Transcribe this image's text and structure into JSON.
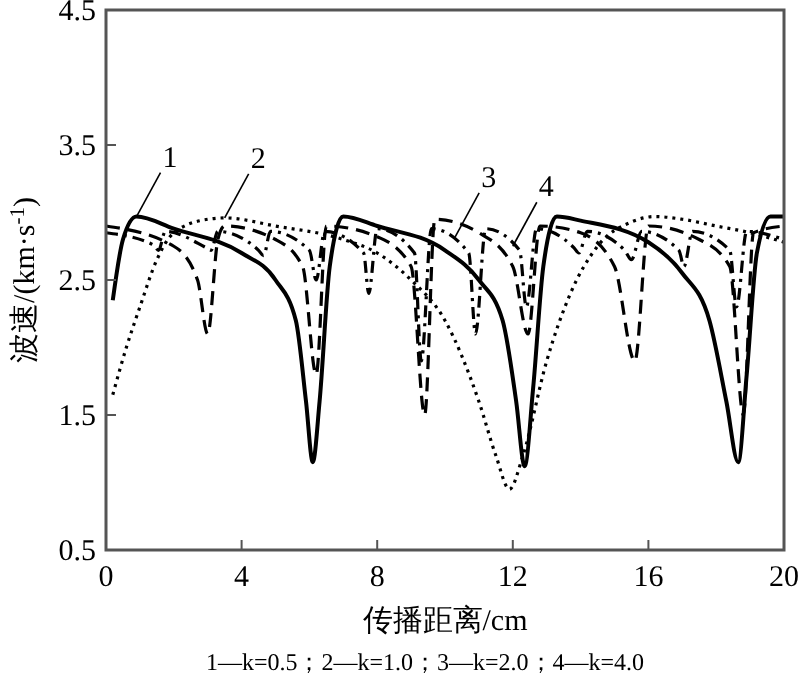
{
  "chart_data": {
    "type": "line",
    "xlabel": "传播距离/cm",
    "ylabel": "波速/(km·s$^{-1}$)",
    "xlim": [
      0,
      20
    ],
    "ylim": [
      0.5,
      4.5
    ],
    "xticks": [
      0,
      4,
      8,
      12,
      16,
      20
    ],
    "yticks": [
      0.5,
      1.5,
      2.5,
      3.5,
      4.5
    ],
    "grid": false,
    "marker": "none",
    "series": [
      {
        "color": "#000000",
        "line_style": "solid",
        "x": [
          0.2,
          0.5,
          0.9,
          2,
          4,
          5,
          5.6,
          5.9,
          6.1,
          6.3,
          6.6,
          7,
          8,
          10,
          11,
          11.7,
          12.1,
          12.35,
          12.6,
          12.9,
          13.3,
          14,
          16,
          17,
          17.8,
          18.3,
          18.65,
          18.9,
          19.2,
          19.6,
          20
        ],
        "values": [
          2.35,
          2.8,
          2.97,
          2.88,
          2.7,
          2.5,
          2.2,
          1.6,
          1.15,
          1.6,
          2.6,
          2.97,
          2.9,
          2.72,
          2.5,
          2.2,
          1.6,
          1.12,
          1.7,
          2.6,
          2.97,
          2.94,
          2.78,
          2.55,
          2.2,
          1.6,
          1.15,
          1.8,
          2.7,
          2.97,
          2.97
        ]
      },
      {
        "color": "#000000",
        "line_style": "dotted",
        "x": [
          0.2,
          0.6,
          1,
          1.5,
          2,
          3,
          3.5,
          5,
          7,
          8,
          9,
          10,
          11,
          11.5,
          11.9,
          12.3,
          13,
          13.7,
          14.5,
          15.5,
          16.2,
          17,
          18,
          19,
          20
        ],
        "values": [
          1.65,
          2.0,
          2.3,
          2.65,
          2.85,
          2.95,
          2.96,
          2.9,
          2.8,
          2.7,
          2.5,
          2.2,
          1.6,
          1.2,
          0.95,
          1.2,
          1.9,
          2.4,
          2.75,
          2.93,
          2.97,
          2.95,
          2.9,
          2.85,
          2.78
        ]
      },
      {
        "color": "#000000",
        "line_style": "dashed",
        "x": [
          0,
          2,
          2.7,
          3.0,
          3.3,
          3.5,
          5,
          5.8,
          6.2,
          6.5,
          8,
          9,
          9.4,
          9.7,
          11,
          12,
          12.45,
          12.8,
          14,
          15,
          15.6,
          16,
          17.5,
          18.4,
          18.8,
          19.1,
          20
        ],
        "values": [
          2.9,
          2.75,
          2.5,
          2.1,
          2.8,
          2.9,
          2.8,
          2.6,
          1.8,
          2.9,
          2.82,
          2.6,
          1.5,
          2.95,
          2.85,
          2.6,
          2.1,
          2.9,
          2.85,
          2.6,
          1.9,
          2.9,
          2.8,
          2.6,
          1.5,
          2.85,
          2.9
        ]
      },
      {
        "color": "#000000",
        "line_style": "dashdot",
        "x": [
          0,
          1.4,
          1.55,
          1.75,
          2.95,
          3.1,
          3.3,
          4.5,
          4.65,
          4.85,
          6.0,
          6.2,
          6.45,
          7.6,
          7.75,
          8.0,
          9.1,
          9.3,
          9.6,
          10.7,
          10.9,
          11.2,
          12.2,
          12.4,
          12.7,
          13.8,
          13.95,
          14.2,
          15.3,
          15.5,
          15.8,
          16.9,
          17.05,
          17.3,
          18.4,
          18.6,
          18.9,
          20
        ],
        "values": [
          2.85,
          2.76,
          2.72,
          2.86,
          2.74,
          2.72,
          2.86,
          2.72,
          2.68,
          2.86,
          2.72,
          2.5,
          2.86,
          2.7,
          2.4,
          2.88,
          2.7,
          1.9,
          2.88,
          2.7,
          2.1,
          2.88,
          2.72,
          2.3,
          2.88,
          2.74,
          2.7,
          2.86,
          2.72,
          2.65,
          2.86,
          2.72,
          2.6,
          2.86,
          2.72,
          2.3,
          2.86,
          2.8
        ]
      }
    ],
    "annotations": [
      {
        "text": "1",
        "x": 0.9,
        "y": 2.97
      },
      {
        "text": "2",
        "x": 3.5,
        "y": 2.96
      },
      {
        "text": "3",
        "x": 10.3,
        "y": 2.82
      },
      {
        "text": "4",
        "x": 12.0,
        "y": 2.75
      },
      "1—k=0.5；2—k=1.0；3—k=2.0；4—k=4.0"
    ]
  }
}
